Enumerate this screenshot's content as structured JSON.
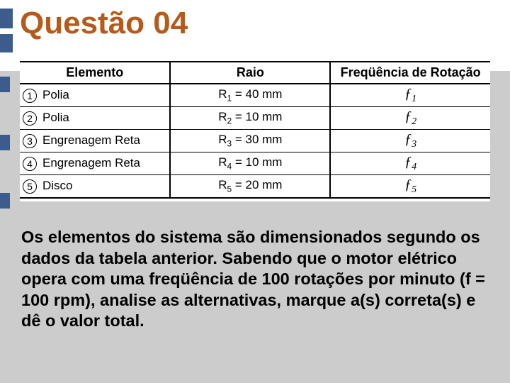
{
  "title": "Questão 04",
  "accent_bar_color": "#3b5c8c",
  "title_color": "#b55a1a",
  "background_color": "#cccccc",
  "table": {
    "columns": [
      "Elemento",
      "Raio",
      "Freqüência de Rotação"
    ],
    "header_fontsize": 18,
    "cell_fontsize": 17,
    "freq_fontsize": 20,
    "border_color": "#000000",
    "background_color": "#ffffff",
    "col_widths_pct": [
      32,
      34,
      34
    ],
    "rows": [
      {
        "n": "1",
        "elemento": "Polia",
        "raio_lhs": "R",
        "raio_sub": "1",
        "raio_rhs": "= 40 mm",
        "freq_sym": "ƒ",
        "freq_sub": "1"
      },
      {
        "n": "2",
        "elemento": "Polia",
        "raio_lhs": "R",
        "raio_sub": "2",
        "raio_rhs": "= 10 mm",
        "freq_sym": "ƒ",
        "freq_sub": "2"
      },
      {
        "n": "3",
        "elemento": "Engrenagem Reta",
        "raio_lhs": "R",
        "raio_sub": "3",
        "raio_rhs": "= 30 mm",
        "freq_sym": "ƒ",
        "freq_sub": "3"
      },
      {
        "n": "4",
        "elemento": "Engrenagem Reta",
        "raio_lhs": "R",
        "raio_sub": "4",
        "raio_rhs": "= 10 mm",
        "freq_sym": "ƒ",
        "freq_sub": "4"
      },
      {
        "n": "5",
        "elemento": "Disco",
        "raio_lhs": "R",
        "raio_sub": "5",
        "raio_rhs": "= 20 mm",
        "freq_sym": "ƒ",
        "freq_sub": "5"
      }
    ]
  },
  "body_text": "Os elementos do sistema são dimensionados segundo os dados da tabela anterior. Sabendo que o motor elétrico opera com uma freqüência de 100 rotações por minuto (f = 100 rpm), analise as alternativas, marque a(s) correta(s) e dê o valor total.",
  "body_fontsize": 23.5,
  "body_fontweight": "bold",
  "body_color": "#000000"
}
